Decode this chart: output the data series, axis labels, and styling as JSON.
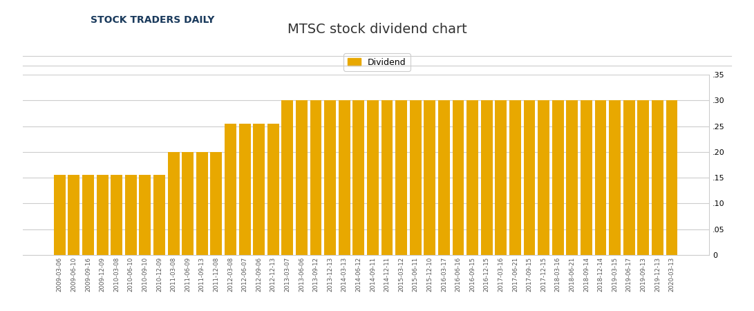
{
  "title": "MTSC stock dividend chart",
  "bar_color": "#E8A800",
  "legend_label": "Dividend",
  "ylim": [
    0,
    0.35
  ],
  "yticks": [
    0,
    0.05,
    0.1,
    0.15,
    0.2,
    0.25,
    0.3,
    0.35
  ],
  "background_color": "#ffffff",
  "grid_color": "#cccccc",
  "spine_color": "#cccccc",
  "title_color": "#333333",
  "title_fontsize": 14,
  "tick_fontsize": 8,
  "categories": [
    "2009-03-06",
    "2009-06-10",
    "2009-09-16",
    "2009-12-09",
    "2010-03-08",
    "2010-06-10",
    "2010-09-10",
    "2010-12-09",
    "2011-03-08",
    "2011-06-09",
    "2011-09-13",
    "2011-12-08",
    "2012-03-08",
    "2012-06-07",
    "2012-09-06",
    "2012-12-13",
    "2013-03-07",
    "2013-06-06",
    "2013-09-12",
    "2013-12-13",
    "2014-03-13",
    "2014-06-12",
    "2014-09-11",
    "2014-12-11",
    "2015-03-12",
    "2015-06-11",
    "2015-12-10",
    "2016-03-17",
    "2016-06-16",
    "2016-09-15",
    "2016-12-15",
    "2017-03-16",
    "2017-06-21",
    "2017-09-15",
    "2017-12-15",
    "2018-03-16",
    "2018-06-21",
    "2018-09-14",
    "2018-12-14",
    "2019-03-15",
    "2019-06-17",
    "2019-09-13",
    "2019-12-13",
    "2020-03-13"
  ],
  "values": [
    0.155,
    0.155,
    0.155,
    0.155,
    0.155,
    0.155,
    0.155,
    0.155,
    0.2,
    0.2,
    0.2,
    0.2,
    0.255,
    0.255,
    0.255,
    0.255,
    0.3,
    0.3,
    0.3,
    0.3,
    0.3,
    0.3,
    0.3,
    0.3,
    0.3,
    0.3,
    0.3,
    0.3,
    0.3,
    0.3,
    0.3,
    0.3,
    0.3,
    0.3,
    0.3,
    0.3,
    0.3,
    0.3,
    0.3,
    0.3,
    0.3,
    0.3,
    0.3,
    0.3
  ]
}
